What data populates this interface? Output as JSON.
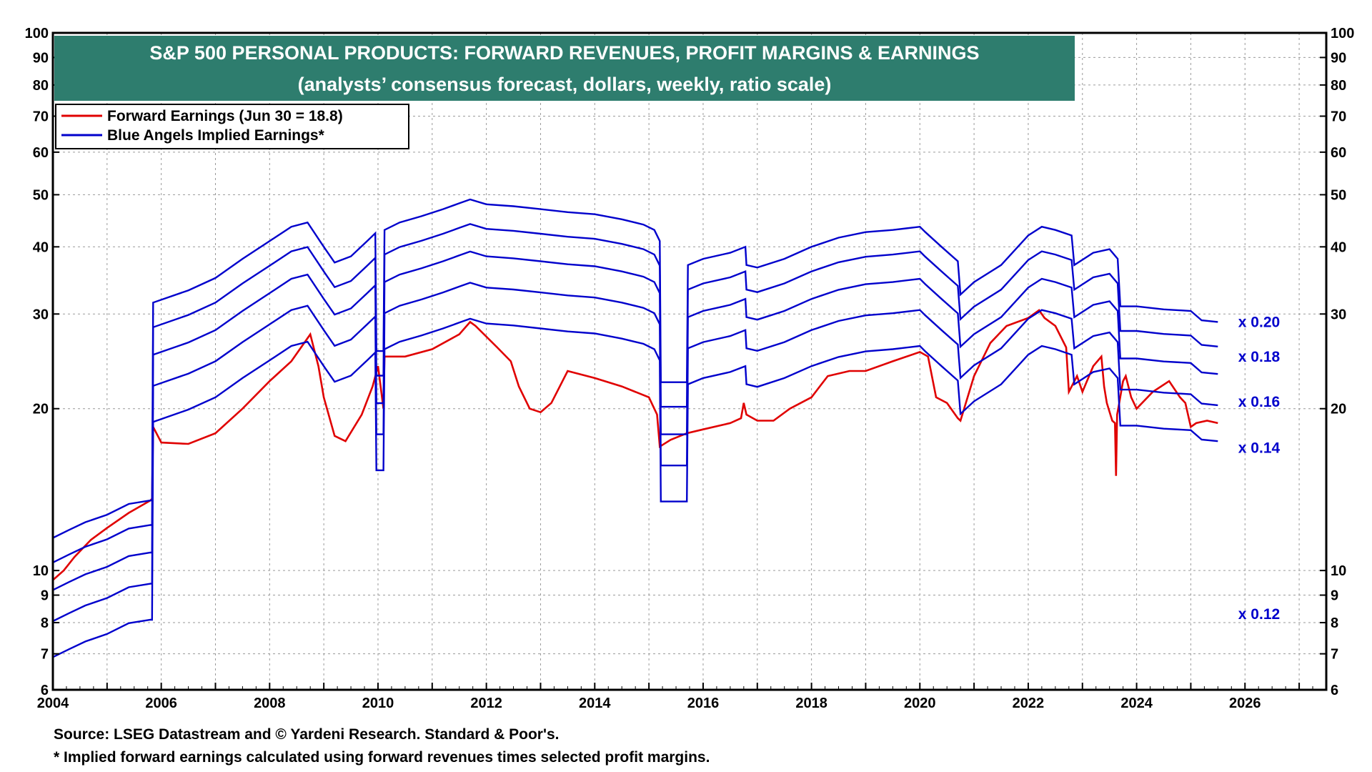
{
  "title": "S&P 500 PERSONAL PRODUCTS: FORWARD REVENUES, PROFIT MARGINS & EARNINGS",
  "subtitle": "(analysts’ consensus forecast, dollars, weekly, ratio scale)",
  "source": "Source: LSEG Datastream and © Yardeni Research. Standard & Poor's.",
  "footnote": "* Implied forward earnings calculated using forward revenues times selected profit margins.",
  "colors": {
    "title_bg": "#2e7d6e",
    "earnings": "#e00000",
    "implied": "#0000cc"
  },
  "chart_data": {
    "type": "line",
    "title": "S&P 500 PERSONAL PRODUCTS: FORWARD REVENUES, PROFIT MARGINS & EARNINGS",
    "subtitle": "(analysts’ consensus forecast, dollars, weekly, ratio scale)",
    "y_scale": "log",
    "ylim": [
      6,
      100
    ],
    "xlim": [
      2004,
      2027.5
    ],
    "grid": true,
    "legend_placement": "top-left",
    "x_ticks": [
      "2004",
      "2006",
      "2008",
      "2010",
      "2012",
      "2014",
      "2016",
      "2018",
      "2020",
      "2022",
      "2024",
      "2026"
    ],
    "y_ticks": [
      "6",
      "7",
      "8",
      "9",
      "10",
      "20",
      "30",
      "40",
      "50",
      "60",
      "70",
      "80",
      "90",
      "100"
    ],
    "legend": [
      {
        "label": "Forward Earnings (Jun 30 = 18.8)",
        "color": "#e00000"
      },
      {
        "label": "Blue Angels Implied Earnings*",
        "color": "#0000cc"
      }
    ],
    "multiplier_labels": [
      {
        "text": "x 0.20",
        "y": 29.0
      },
      {
        "text": "x 0.18",
        "y": 25.0
      },
      {
        "text": "x 0.16",
        "y": 20.6
      },
      {
        "text": "x 0.14",
        "y": 16.9
      },
      {
        "text": "x 0.12",
        "y": 8.3
      }
    ],
    "margins": [
      0.2,
      0.18,
      0.16,
      0.14,
      0.12
    ],
    "forward_revenues_base": {
      "x": [
        2004.0,
        2004.3,
        2004.6,
        2005.0,
        2005.4,
        2005.8,
        2005.83,
        2005.85,
        2006.5,
        2007.0,
        2007.5,
        2008.0,
        2008.4,
        2008.7,
        2009.0,
        2009.2,
        2009.5,
        2009.8,
        2009.95,
        2009.97,
        2010.1,
        2010.12,
        2010.4,
        2010.8,
        2011.2,
        2011.5,
        2011.7,
        2012.0,
        2012.5,
        2013.0,
        2013.5,
        2014.0,
        2014.5,
        2014.9,
        2015.1,
        2015.2,
        2015.22,
        2015.7,
        2015.72,
        2016.0,
        2016.5,
        2016.78,
        2016.8,
        2017.0,
        2017.5,
        2018.0,
        2018.5,
        2019.0,
        2019.5,
        2020.0,
        2020.1,
        2020.4,
        2020.7,
        2020.75,
        2021.0,
        2021.5,
        2022.0,
        2022.25,
        2022.5,
        2022.8,
        2022.85,
        2023.2,
        2023.5,
        2023.65,
        2023.7,
        2024.0,
        2024.5,
        2025.0,
        2025.2,
        2025.5
      ],
      "y": [
        57.5,
        59.5,
        61.5,
        63.5,
        66.5,
        67.5,
        67.5,
        157.5,
        166.0,
        175.0,
        190.0,
        205.0,
        218.0,
        222.0,
        200.0,
        187.0,
        192.0,
        205.0,
        212.0,
        128.0,
        128.0,
        215.0,
        222.0,
        228.0,
        235.0,
        241.0,
        245.0,
        240.0,
        238.0,
        235.0,
        232.0,
        230.0,
        225.0,
        220.0,
        215.0,
        205.0,
        112.0,
        112.0,
        185.0,
        190.0,
        195.0,
        200.0,
        185.0,
        183.0,
        190.0,
        200.0,
        208.0,
        213.0,
        215.0,
        218.0,
        213.0,
        200.0,
        188.0,
        163.0,
        172.0,
        185.0,
        210.0,
        218.0,
        215.0,
        210.0,
        185.0,
        195.0,
        198.0,
        190.0,
        155.0,
        155.0,
        153.0,
        152.0,
        146.0,
        145.0
      ]
    },
    "series": [
      {
        "name": "Forward Earnings (Jun 30 = 18.8)",
        "color": "#e00000",
        "x": [
          2004.0,
          2004.2,
          2004.4,
          2004.7,
          2005.0,
          2005.4,
          2005.8,
          2005.83,
          2005.85,
          2006.0,
          2006.5,
          2007.0,
          2007.5,
          2008.0,
          2008.4,
          2008.75,
          2008.9,
          2009.0,
          2009.2,
          2009.4,
          2009.7,
          2009.9,
          2010.0,
          2010.1,
          2010.12,
          2010.5,
          2011.0,
          2011.5,
          2011.7,
          2011.8,
          2012.2,
          2012.45,
          2012.6,
          2012.8,
          2013.0,
          2013.2,
          2013.5,
          2014.0,
          2014.5,
          2015.0,
          2015.15,
          2015.2,
          2015.4,
          2015.7,
          2016.0,
          2016.5,
          2016.7,
          2016.75,
          2016.8,
          2017.0,
          2017.3,
          2017.6,
          2018.0,
          2018.3,
          2018.7,
          2019.0,
          2019.5,
          2020.0,
          2020.15,
          2020.3,
          2020.5,
          2020.7,
          2020.75,
          2021.0,
          2021.3,
          2021.6,
          2022.0,
          2022.2,
          2022.3,
          2022.5,
          2022.7,
          2022.75,
          2022.9,
          2023.0,
          2023.2,
          2023.35,
          2023.4,
          2023.45,
          2023.55,
          2023.6,
          2023.62,
          2023.64,
          2023.68,
          2023.75,
          2023.8,
          2023.9,
          2024.0,
          2024.3,
          2024.6,
          2024.8,
          2024.9,
          2025.0,
          2025.1,
          2025.3,
          2025.5
        ],
        "y": [
          9.6,
          10.0,
          10.6,
          11.4,
          12.0,
          12.8,
          13.5,
          13.6,
          18.5,
          17.3,
          17.2,
          18.0,
          20.0,
          22.5,
          24.5,
          27.5,
          24.0,
          21.0,
          17.8,
          17.4,
          19.5,
          22.0,
          24.0,
          20.0,
          25.0,
          25.0,
          25.8,
          27.5,
          29.0,
          28.5,
          26.0,
          24.5,
          22.0,
          20.0,
          19.7,
          20.5,
          23.5,
          22.8,
          22.0,
          21.0,
          19.5,
          17.0,
          17.5,
          18.0,
          18.3,
          18.8,
          19.2,
          20.5,
          19.5,
          19.0,
          19.0,
          20.0,
          21.0,
          23.0,
          23.5,
          23.5,
          24.5,
          25.5,
          25.0,
          21.0,
          20.5,
          19.2,
          19.0,
          23.0,
          26.5,
          28.5,
          29.5,
          30.5,
          29.5,
          28.5,
          26.0,
          21.5,
          23.0,
          21.5,
          24.0,
          25.0,
          22.0,
          20.5,
          19.0,
          18.8,
          15.0,
          19.5,
          20.5,
          22.5,
          23.0,
          21.0,
          20.0,
          21.5,
          22.5,
          21.0,
          20.5,
          18.5,
          18.8,
          19.0,
          18.8
        ]
      },
      {
        "name": "Blue Angels Implied Earnings*",
        "color": "#0000cc",
        "margin": 0.2
      },
      {
        "name": "Blue Angels Implied Earnings*",
        "color": "#0000cc",
        "margin": 0.18
      },
      {
        "name": "Blue Angels Implied Earnings*",
        "color": "#0000cc",
        "margin": 0.16
      },
      {
        "name": "Blue Angels Implied Earnings*",
        "color": "#0000cc",
        "margin": 0.14
      },
      {
        "name": "Blue Angels Implied Earnings*",
        "color": "#0000cc",
        "margin": 0.12
      }
    ]
  }
}
